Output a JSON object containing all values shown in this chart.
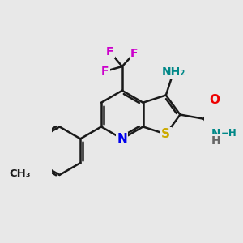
{
  "bg_color": "#e8e8e8",
  "bond_color": "#1a1a1a",
  "bond_width": 1.8,
  "atom_colors": {
    "N_ring": "#0000ee",
    "S": "#ccaa00",
    "O": "#ee0000",
    "N_amino": "#008888",
    "N_amide": "#008888",
    "F": "#cc00cc",
    "C": "#1a1a1a"
  },
  "figsize": [
    3.0,
    3.0
  ],
  "dpi": 100,
  "xlim": [
    -4.0,
    4.5
  ],
  "ylim": [
    -4.5,
    4.0
  ]
}
